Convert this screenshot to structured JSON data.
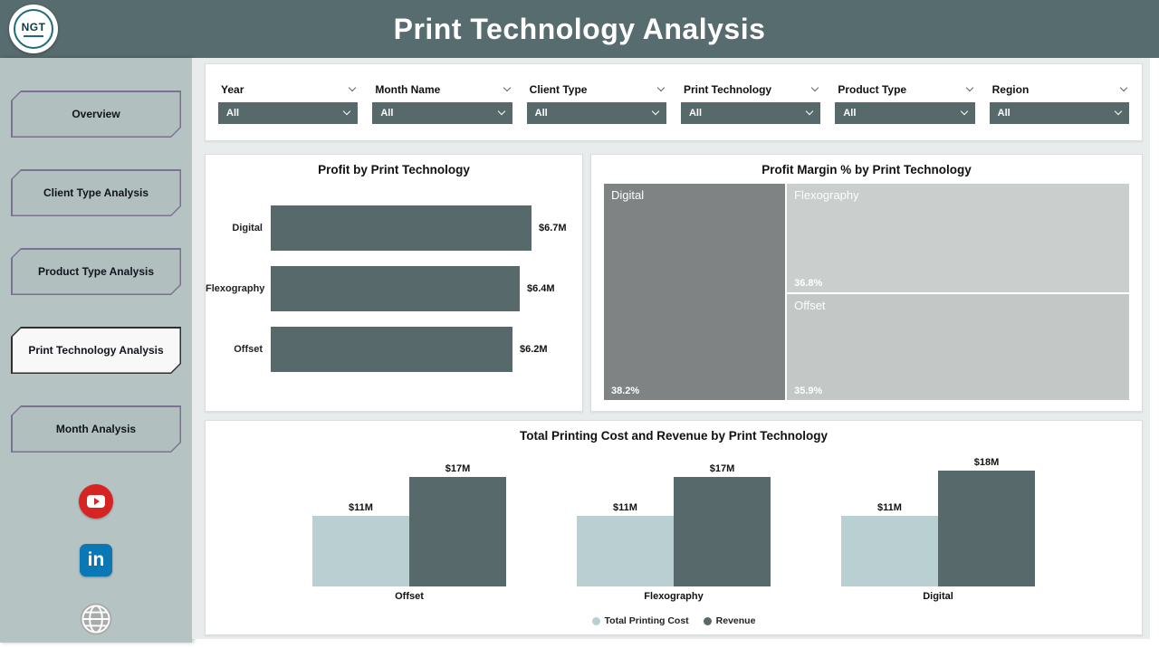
{
  "header": {
    "title": "Print Technology Analysis",
    "logo_text": "NGT"
  },
  "sidebar": {
    "items": [
      {
        "label": "Overview",
        "active": false
      },
      {
        "label": "Client Type Analysis",
        "active": false
      },
      {
        "label": "Product Type Analysis",
        "active": false
      },
      {
        "label": "Print Technology Analysis",
        "active": true
      },
      {
        "label": "Month Analysis",
        "active": false
      }
    ],
    "linkedin_glyph": "in",
    "social_icons": [
      "youtube-icon",
      "linkedin-icon",
      "globe-icon"
    ]
  },
  "filters": [
    {
      "label": "Year",
      "value": "All"
    },
    {
      "label": "Month Name",
      "value": "All"
    },
    {
      "label": "Client Type",
      "value": "All"
    },
    {
      "label": "Print Technology",
      "value": "All"
    },
    {
      "label": "Product Type",
      "value": "All"
    },
    {
      "label": "Region",
      "value": "All"
    }
  ],
  "chart_data": [
    {
      "type": "bar",
      "orientation": "horizontal",
      "title": "Profit by Print Technology",
      "categories": [
        "Digital",
        "Flexography",
        "Offset"
      ],
      "values": [
        6.7,
        6.4,
        6.2
      ],
      "value_labels": [
        "$6.7M",
        "$6.4M",
        "$6.2M"
      ],
      "unit": "USD millions",
      "bar_color": "#57696b",
      "xlim": [
        0,
        6.7
      ],
      "grid": false
    },
    {
      "type": "treemap",
      "title": "Profit Margin % by Print Technology",
      "nodes": [
        {
          "name": "Digital",
          "value": 38.2,
          "value_label": "38.2%",
          "color": "#7f8384"
        },
        {
          "name": "Flexography",
          "value": 36.8,
          "value_label": "36.8%",
          "color": "#cacecd"
        },
        {
          "name": "Offset",
          "value": 35.9,
          "value_label": "35.9%",
          "color": "#c3c8c7"
        }
      ]
    },
    {
      "type": "bar",
      "orientation": "vertical",
      "title": "Total Printing Cost and Revenue by Print Technology",
      "categories": [
        "Offset",
        "Flexography",
        "Digital"
      ],
      "series": [
        {
          "name": "Total Printing Cost",
          "values": [
            11,
            11,
            11
          ],
          "value_labels": [
            "$11M",
            "$11M",
            "$11M"
          ],
          "color": "#b9cfd2"
        },
        {
          "name": "Revenue",
          "values": [
            17,
            17,
            18
          ],
          "value_labels": [
            "$17M",
            "$17M",
            "$18M"
          ],
          "color": "#57696b"
        }
      ],
      "ylim": [
        0,
        18
      ],
      "legend_position": "bottom",
      "grid": false
    }
  ]
}
